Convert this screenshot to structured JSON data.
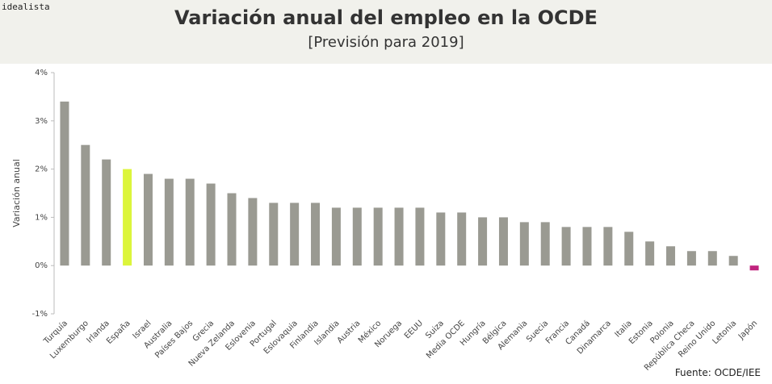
{
  "brand": "idealista",
  "source": "Fuente: OCDE/IEE",
  "chart_data": {
    "type": "bar",
    "title": "Variación anual del empleo en la OCDE",
    "subtitle": "[Previsión para 2019]",
    "ylabel": "Variación anual",
    "xlabel": "",
    "ylim": [
      -1,
      4
    ],
    "yticks": [
      -1,
      0,
      1,
      2,
      3,
      4
    ],
    "ytick_labels": [
      "-1%",
      "0%",
      "1%",
      "2%",
      "3%",
      "4%"
    ],
    "grid": false,
    "categories": [
      "Turquía",
      "Luxemburgo",
      "Irlanda",
      "España",
      "Israel",
      "Australia",
      "Países Bajos",
      "Grecia",
      "Nueva Zelanda",
      "Eslovenia",
      "Portugal",
      "Eslovaquia",
      "Finlandia",
      "Islandia",
      "Austria",
      "México",
      "Noruega",
      "EEUU",
      "Suiza",
      "Media OCDE",
      "Hungría",
      "Bélgica",
      "Alemania",
      "Suecia",
      "Francia",
      "Canadá",
      "Dinamarca",
      "Italia",
      "Estonia",
      "Polonia",
      "República Checa",
      "Reino Unido",
      "Letonia",
      "Japón"
    ],
    "values": [
      3.4,
      2.5,
      2.2,
      2.0,
      1.9,
      1.8,
      1.8,
      1.7,
      1.5,
      1.4,
      1.3,
      1.3,
      1.3,
      1.2,
      1.2,
      1.2,
      1.2,
      1.2,
      1.1,
      1.1,
      1.0,
      1.0,
      0.9,
      0.9,
      0.8,
      0.8,
      0.8,
      0.7,
      0.5,
      0.4,
      0.3,
      0.3,
      0.2,
      -0.1
    ],
    "colors": {
      "default": "#9a9a92",
      "España": "#dcf53b",
      "Japón": "#c0237e"
    }
  }
}
